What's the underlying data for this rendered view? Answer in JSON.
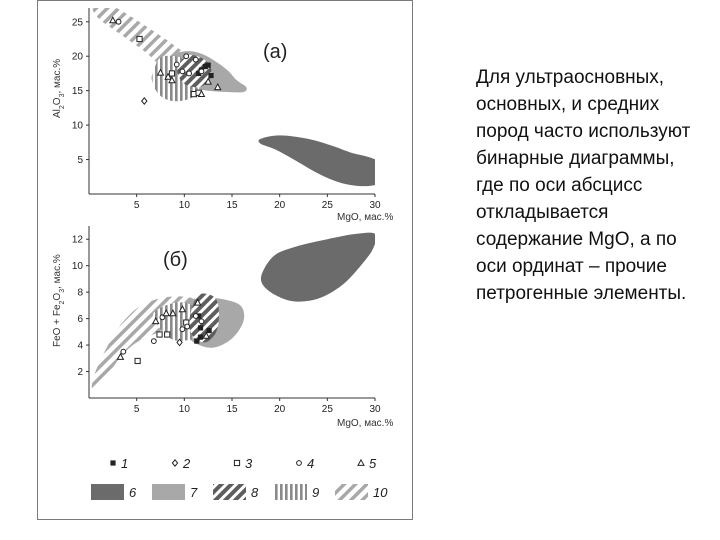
{
  "slide_text": "Для ультраосновных, основных, и средних пород часто используют бинарные диаграммы, где по оси абсцисс откладывается содержание MgO, а по оси ординат – прочие петрогенные элементы.",
  "colors": {
    "field6": "#6b6b6b",
    "field7": "#a8a8a8",
    "hatch": "#6e6e6e",
    "marker": "#222222"
  },
  "chart_data": [
    {
      "type": "scatter",
      "panel_label": "(а)",
      "xlabel": "MgO, мас.%",
      "ylabel": "Al2O3, мас.%",
      "xlim": [
        0,
        30
      ],
      "ylim": [
        0,
        27
      ],
      "xticks": [
        5,
        10,
        15,
        20,
        25,
        30
      ],
      "yticks": [
        5,
        10,
        15,
        20,
        25
      ],
      "fields": [
        {
          "name": "6",
          "style": "solid-dark",
          "outline": [
            [
              18,
              8
            ],
            [
              20,
              8.5
            ],
            [
              23,
              8
            ],
            [
              25.5,
              7
            ],
            [
              27.5,
              6
            ],
            [
              29.5,
              5.3
            ],
            [
              31.5,
              4
            ],
            [
              31.5,
              2.5
            ],
            [
              30,
              1.3
            ],
            [
              28,
              1.2
            ],
            [
              26,
              1.8
            ],
            [
              24,
              3
            ],
            [
              21.5,
              5
            ],
            [
              19.5,
              6.5
            ],
            [
              18,
              7.3
            ]
          ]
        },
        {
          "name": "7",
          "style": "solid-light",
          "outline": [
            [
              7.5,
              18
            ],
            [
              8.5,
              20
            ],
            [
              10,
              20.7
            ],
            [
              11.5,
              20.5
            ],
            [
              13,
              19.5
            ],
            [
              14.5,
              18
            ],
            [
              15.5,
              16.5
            ],
            [
              16.5,
              15.5
            ],
            [
              16.2,
              14.8
            ],
            [
              14.5,
              14.8
            ],
            [
              12.5,
              15
            ],
            [
              10.5,
              15.5
            ],
            [
              8.5,
              16.5
            ]
          ]
        },
        {
          "name": "8",
          "style": "hatch-diagonal",
          "outline": [
            [
              9.5,
              19
            ],
            [
              10.5,
              20.2
            ],
            [
              12,
              19.6
            ],
            [
              12.8,
              18.2
            ],
            [
              12.6,
              16.5
            ],
            [
              11.5,
              15.5
            ],
            [
              10,
              16
            ],
            [
              9.3,
              17.5
            ]
          ]
        },
        {
          "name": "9",
          "style": "hatch-vertical",
          "outline": [
            [
              6.8,
              18
            ],
            [
              7.5,
              19.8
            ],
            [
              9,
              20
            ],
            [
              10.5,
              19.3
            ],
            [
              11.5,
              17.5
            ],
            [
              11.5,
              15
            ],
            [
              10.5,
              13.8
            ],
            [
              8.7,
              13.5
            ],
            [
              7.3,
              14.5
            ],
            [
              6.6,
              16.5
            ]
          ]
        },
        {
          "name": "10",
          "style": "hatch-diagonal-light",
          "outline": [
            [
              0.3,
              27.5
            ],
            [
              1.5,
              28
            ],
            [
              3.5,
              26.5
            ],
            [
              5.5,
              24.8
            ],
            [
              8,
              22.5
            ],
            [
              10.5,
              20
            ],
            [
              12,
              18.5
            ],
            [
              13.5,
              16.5
            ],
            [
              14,
              15.3
            ],
            [
              12.5,
              15
            ],
            [
              10.5,
              16
            ],
            [
              8,
              18
            ],
            [
              6,
              20.5
            ],
            [
              3.5,
              23
            ],
            [
              1,
              25.5
            ]
          ]
        }
      ],
      "points": [
        {
          "type": 1,
          "xy": [
            [
              11.8,
              18
            ],
            [
              12.2,
              18.5
            ],
            [
              12.5,
              18.7
            ],
            [
              11.5,
              17.5
            ],
            [
              12.8,
              17.2
            ]
          ]
        },
        {
          "type": 2,
          "xy": [
            [
              5.8,
              13.5
            ]
          ]
        },
        {
          "type": 3,
          "xy": [
            [
              5.3,
              22.5
            ],
            [
              11,
              14.5
            ],
            [
              11.5,
              14.7
            ],
            [
              8.7,
              17.5
            ]
          ]
        },
        {
          "type": 4,
          "xy": [
            [
              3.1,
              25
            ],
            [
              9.8,
              17.8
            ],
            [
              10.2,
              20
            ],
            [
              11.2,
              19.5
            ],
            [
              9.2,
              18.8
            ],
            [
              10.5,
              17.5
            ],
            [
              11.8,
              17.8
            ]
          ]
        },
        {
          "type": 5,
          "xy": [
            [
              2.5,
              25.2
            ],
            [
              7.5,
              17.6
            ],
            [
              8.3,
              17
            ],
            [
              8.7,
              16.5
            ],
            [
              12.5,
              16.3
            ],
            [
              11.8,
              14.5
            ],
            [
              13.5,
              15.5
            ]
          ]
        }
      ]
    },
    {
      "type": "scatter",
      "panel_label": "(б)",
      "xlabel": "MgO, мас.%",
      "ylabel": "FeO + Fe2O3, мас.%",
      "xlim": [
        0,
        30
      ],
      "ylim": [
        0,
        13
      ],
      "xticks": [
        5,
        10,
        15,
        20,
        25,
        30
      ],
      "yticks": [
        2,
        4,
        6,
        8,
        10,
        12
      ],
      "fields": [
        {
          "name": "6",
          "style": "solid-dark",
          "outline": [
            [
              18.2,
              9.5
            ],
            [
              19.5,
              10.8
            ],
            [
              22,
              11.5
            ],
            [
              25,
              12
            ],
            [
              28,
              12.4
            ],
            [
              30,
              12.4
            ],
            [
              29.8,
              11.3
            ],
            [
              28.5,
              10
            ],
            [
              26.5,
              8.5
            ],
            [
              24,
              7.5
            ],
            [
              21.5,
              7.3
            ],
            [
              19.5,
              7.8
            ],
            [
              18.2,
              8.6
            ]
          ]
        },
        {
          "name": "7",
          "style": "solid-light",
          "outline": [
            [
              9.5,
              6.3
            ],
            [
              10,
              7.2
            ],
            [
              12,
              7.6
            ],
            [
              14.5,
              7.4
            ],
            [
              16,
              6.9
            ],
            [
              16.2,
              5.8
            ],
            [
              15,
              4.5
            ],
            [
              13,
              3.8
            ],
            [
              11,
              4.2
            ],
            [
              9.8,
              5.2
            ]
          ]
        },
        {
          "name": "8",
          "style": "hatch-diagonal",
          "outline": [
            [
              10.8,
              6.8
            ],
            [
              11.5,
              7.8
            ],
            [
              12.7,
              7.8
            ],
            [
              13.5,
              7.2
            ],
            [
              13.6,
              5.8
            ],
            [
              13.2,
              4.8
            ],
            [
              12.2,
              4.2
            ],
            [
              11,
              4.6
            ],
            [
              10.5,
              5.5
            ]
          ]
        },
        {
          "name": "9",
          "style": "hatch-vertical",
          "outline": [
            [
              7,
              6.6
            ],
            [
              9,
              7.2
            ],
            [
              10.8,
              7
            ],
            [
              11.6,
              6
            ],
            [
              11.5,
              4.9
            ],
            [
              10.5,
              4.4
            ],
            [
              8.8,
              4.4
            ],
            [
              7.5,
              5.2
            ],
            [
              6.8,
              6
            ]
          ]
        },
        {
          "name": "10",
          "style": "hatch-diagonal-light",
          "outline": [
            [
              0.3,
              1
            ],
            [
              0.8,
              2.2
            ],
            [
              2,
              4
            ],
            [
              3.5,
              5.7
            ],
            [
              5.5,
              7
            ],
            [
              8,
              7.6
            ],
            [
              10.5,
              7.6
            ],
            [
              12.5,
              7
            ],
            [
              12.4,
              6
            ],
            [
              10,
              5.5
            ],
            [
              7.5,
              5
            ],
            [
              5,
              4.2
            ],
            [
              3.2,
              3
            ],
            [
              1.5,
              1.2
            ],
            [
              0.5,
              0.5
            ]
          ]
        }
      ],
      "points": [
        {
          "type": 1,
          "xy": [
            [
              11.3,
              4.3
            ],
            [
              11.7,
              4.6
            ],
            [
              11.5,
              6.2
            ],
            [
              12.6,
              5.1
            ],
            [
              11.7,
              5.3
            ]
          ]
        },
        {
          "type": 2,
          "xy": [
            [
              9.5,
              4.2
            ]
          ]
        },
        {
          "type": 3,
          "xy": [
            [
              5.1,
              2.8
            ],
            [
              7.4,
              4.8
            ],
            [
              8.2,
              4.8
            ],
            [
              10.2,
              5.7
            ]
          ]
        },
        {
          "type": 4,
          "xy": [
            [
              3.6,
              3.5
            ],
            [
              7.7,
              6.1
            ],
            [
              9.8,
              5.2
            ],
            [
              10.3,
              5.4
            ],
            [
              11.2,
              6.2
            ],
            [
              6.8,
              4.3
            ],
            [
              11.8,
              5.8
            ]
          ]
        },
        {
          "type": 5,
          "xy": [
            [
              3.3,
              3.1
            ],
            [
              7,
              5.8
            ],
            [
              8.1,
              6.4
            ],
            [
              8.8,
              6.4
            ],
            [
              9.8,
              6.7
            ],
            [
              11.4,
              7.2
            ],
            [
              12.3,
              4.7
            ]
          ]
        }
      ]
    }
  ],
  "legend": [
    {
      "num": "1",
      "kind": "marker",
      "marker": "square-filled"
    },
    {
      "num": "2",
      "kind": "marker",
      "marker": "diamond-open"
    },
    {
      "num": "3",
      "kind": "marker",
      "marker": "square-open"
    },
    {
      "num": "4",
      "kind": "marker",
      "marker": "circle-open"
    },
    {
      "num": "5",
      "kind": "marker",
      "marker": "triangle-open"
    },
    {
      "num": "6",
      "kind": "swatch",
      "style": "solid-dark"
    },
    {
      "num": "7",
      "kind": "swatch",
      "style": "solid-light"
    },
    {
      "num": "8",
      "kind": "swatch",
      "style": "hatch-diagonal"
    },
    {
      "num": "9",
      "kind": "swatch",
      "style": "hatch-vertical"
    },
    {
      "num": "10",
      "kind": "swatch",
      "style": "hatch-diagonal-light"
    }
  ]
}
